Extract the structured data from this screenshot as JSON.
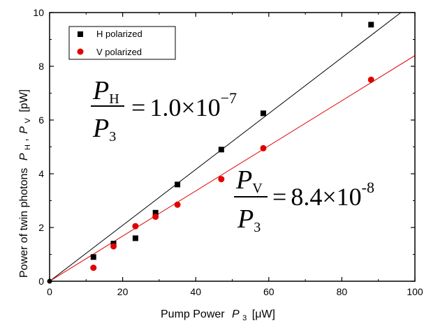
{
  "chart_data": {
    "type": "scatter",
    "xlabel": "Pump Power",
    "xlabel_symbol": "P",
    "xlabel_sub": "3",
    "xlabel_unit": "[μW]",
    "ylabel": "Power of twin photons",
    "ylabel_p1": "P",
    "ylabel_sub1": "H",
    "ylabel_sep": ",",
    "ylabel_p2": "P",
    "ylabel_sub2": "V",
    "ylabel_unit": "[pW]",
    "xlim": [
      0,
      100
    ],
    "ylim": [
      0,
      10
    ],
    "xticks": [
      0,
      20,
      40,
      60,
      80,
      100
    ],
    "yticks": [
      0,
      2,
      4,
      6,
      8,
      10
    ],
    "grid": false,
    "legend_position": "top-left",
    "series": [
      {
        "name": "H polarized",
        "color": "#000000",
        "marker": "square",
        "x": [
          12,
          17.5,
          23.5,
          29,
          35,
          47,
          58.5,
          88
        ],
        "y": [
          0.9,
          1.4,
          1.6,
          2.55,
          3.6,
          4.9,
          6.25,
          9.55
        ],
        "fit_line": {
          "x": [
            0,
            100
          ],
          "y": [
            0,
            10.4
          ]
        }
      },
      {
        "name": "V polarized",
        "color": "#e00000",
        "marker": "circle",
        "x": [
          12,
          17.5,
          23.5,
          29,
          35,
          47,
          58.5,
          88
        ],
        "y": [
          0.5,
          1.3,
          2.05,
          2.4,
          2.85,
          3.8,
          4.95,
          7.5
        ],
        "fit_line": {
          "x": [
            0,
            100
          ],
          "y": [
            0,
            8.4
          ]
        }
      }
    ],
    "origin_point": {
      "x": 0,
      "y": 0
    },
    "annotations": [
      {
        "id": "h",
        "num_symbol": "P",
        "num_sub": "H",
        "den_symbol": "P",
        "den_sub": "3",
        "eq": "=",
        "value": "1.0×10",
        "exp": "−7"
      },
      {
        "id": "v",
        "num_symbol": "P",
        "num_sub": "V",
        "den_symbol": "P",
        "den_sub": "3",
        "eq": "=",
        "value": "8.4×10",
        "exp": "-8"
      }
    ]
  }
}
